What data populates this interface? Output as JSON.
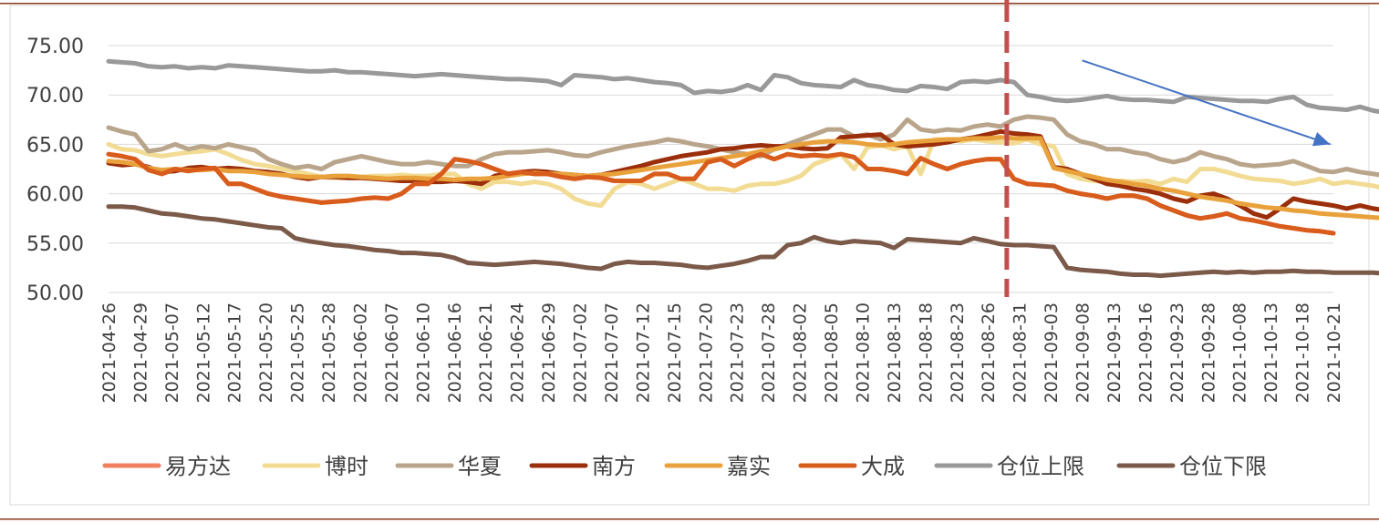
{
  "chart_data": {
    "type": "line",
    "title": "",
    "xlabel": "",
    "ylabel": "",
    "ylim": [
      50,
      75
    ],
    "yticks": [
      "50.00",
      "55.00",
      "60.00",
      "65.00",
      "70.00",
      "75.00"
    ],
    "grid": "horizontal",
    "legend_position": "bottom",
    "x_tick_labels": [
      "2021-04-26",
      "2021-04-29",
      "2021-05-07",
      "2021-05-12",
      "2021-05-17",
      "2021-05-20",
      "2021-05-25",
      "2021-05-28",
      "2021-06-02",
      "2021-06-07",
      "2021-06-10",
      "2021-06-16",
      "2021-06-21",
      "2021-06-24",
      "2021-06-29",
      "2021-07-02",
      "2021-07-07",
      "2021-07-12",
      "2021-07-15",
      "2021-07-20",
      "2021-07-23",
      "2021-07-28",
      "2021-08-02",
      "2021-08-05",
      "2021-08-10",
      "2021-08-13",
      "2021-08-18",
      "2021-08-23",
      "2021-08-26",
      "2021-08-31",
      "2021-09-03",
      "2021-09-08",
      "2021-09-13",
      "2021-09-16",
      "2021-09-23",
      "2021-09-28",
      "2021-10-08",
      "2021-10-13",
      "2021-10-18",
      "2021-10-21"
    ],
    "marker_line": {
      "x_index": 28.6,
      "color": "#c0504d",
      "style": "dashed"
    },
    "arrow": {
      "from": [
        31.0,
        73.5
      ],
      "to": [
        38.9,
        65.0
      ],
      "color": "#4472c4"
    },
    "series": [
      {
        "name": "易方达",
        "color": "#f08060",
        "values": [
          64,
          63.8,
          63.5,
          62.4,
          62,
          62.5,
          62.3,
          62.5,
          62.6,
          61,
          61,
          60.5,
          60,
          59.7,
          59.5,
          59.3,
          59.1,
          59.2,
          59.3,
          59.5,
          59.6,
          59.5,
          60,
          61,
          61,
          62,
          63.5,
          63.3,
          63,
          62.5,
          62,
          62.2,
          62,
          62,
          61.7,
          61.5,
          61.7,
          61.6,
          61.3,
          61.3,
          61.3,
          62,
          62,
          61.5,
          61.5,
          63.2,
          63.5,
          62.8,
          63.5,
          64,
          63.5,
          64,
          63.8,
          63.9,
          63.8,
          64,
          63.7,
          62.5,
          62.5,
          62.3,
          62,
          63.6,
          63,
          62.5,
          63,
          63.3,
          63.5,
          63.5,
          61.5,
          61,
          60.9,
          60.8,
          60.3,
          60,
          59.8,
          59.5,
          59.8,
          59.8,
          59.5,
          58.8,
          58.3,
          57.8,
          57.5,
          57.7,
          58,
          57.5,
          57.3,
          57,
          56.7,
          56.5,
          56.3,
          56.2,
          56
        ]
      },
      {
        "name": "博时",
        "color": "#f2dc94",
        "values": [
          65,
          64.5,
          64.4,
          64,
          63.8,
          64,
          64.2,
          64.3,
          64.5,
          64,
          63.4,
          63,
          62.8,
          62.5,
          62.3,
          62,
          61.7,
          61.6,
          61.6,
          61.7,
          61.8,
          61.8,
          61.9,
          61.8,
          61.8,
          62,
          62,
          61,
          60.5,
          61.2,
          61.2,
          61,
          61.2,
          61,
          60.5,
          59.5,
          59,
          58.8,
          60.5,
          61.2,
          61,
          60.5,
          61,
          61.5,
          61,
          60.5,
          60.5,
          60.3,
          60.8,
          61,
          61,
          61.3,
          61.8,
          63,
          63.5,
          64,
          62.5,
          64.7,
          64.9,
          64.5,
          64.8,
          62,
          65.5,
          65.5,
          65.3,
          65.5,
          65.3,
          65.2,
          65.1,
          65.5,
          65,
          64.8,
          62,
          61.5,
          61.3,
          61.2,
          61.3,
          61.2,
          61.3,
          61,
          61.5,
          61.2,
          62.5,
          62.5,
          62.2,
          61.8,
          61.5,
          61.4,
          61.3,
          61,
          61.2,
          61.5,
          61,
          61.2,
          61,
          60.8,
          60.5,
          60.5
        ]
      },
      {
        "name": "华夏",
        "color": "#b9a58b",
        "values": [
          66.7,
          66.3,
          66,
          64.3,
          64.5,
          65,
          64.5,
          64.8,
          64.6,
          65,
          64.7,
          64.4,
          63.5,
          63,
          62.6,
          62.8,
          62.5,
          63.2,
          63.5,
          63.8,
          63.5,
          63.2,
          63,
          63,
          63.2,
          63,
          62.8,
          62.8,
          63.5,
          64,
          64.2,
          64.2,
          64.3,
          64.4,
          64.2,
          63.9,
          63.8,
          64.2,
          64.5,
          64.8,
          65,
          65.2,
          65.5,
          65.3,
          65,
          64.8,
          64.5,
          64.2,
          64,
          63.8,
          64.5,
          65,
          65.5,
          66,
          66.5,
          66.5,
          65.8,
          66,
          65.5,
          66,
          67.5,
          66.5,
          66.3,
          66.5,
          66.4,
          66.8,
          67,
          66.8,
          67.5,
          67.8,
          67.7,
          67.5,
          66,
          65.3,
          65,
          64.5,
          64.5,
          64.2,
          64,
          63.5,
          63.2,
          63.5,
          64.2,
          63.8,
          63.5,
          63,
          62.8,
          62.9,
          63,
          63.3,
          62.8,
          62.3,
          62.2,
          62.5,
          62.2,
          62,
          61.8,
          61.5,
          61.3,
          61.3
        ]
      },
      {
        "name": "南方",
        "color": "#9c2f0b",
        "values": [
          63.1,
          62.9,
          63,
          62.7,
          62.2,
          62.3,
          62.6,
          62.7,
          62.5,
          62.6,
          62.5,
          62.3,
          62.2,
          62,
          61.7,
          61.5,
          61.7,
          61.7,
          61.6,
          61.6,
          61.5,
          61.4,
          61.3,
          61.3,
          61.2,
          61.2,
          61.3,
          61.2,
          61,
          61.8,
          62,
          62.2,
          62.3,
          62.2,
          62,
          61.9,
          61.8,
          61.9,
          62.2,
          62.5,
          62.8,
          63.2,
          63.5,
          63.8,
          64,
          64.2,
          64.5,
          64.6,
          64.8,
          64.9,
          64.8,
          64.8,
          64.6,
          64.5,
          64.6,
          65.7,
          65.8,
          65.9,
          66,
          65,
          64.8,
          64.9,
          65,
          65.2,
          65.5,
          65.7,
          66,
          66.3,
          66.1,
          66,
          65.8,
          62.7,
          62.5,
          62,
          61.5,
          61,
          60.8,
          60.5,
          60.3,
          60,
          59.5,
          59.2,
          59.8,
          60,
          59.5,
          58.8,
          58,
          57.6,
          58.5,
          59.5,
          59.2,
          59,
          58.8,
          58.5,
          58.8,
          58.5,
          58.3,
          58,
          57.8
        ]
      },
      {
        "name": "嘉实",
        "color": "#e9a23b",
        "values": [
          63.3,
          63.2,
          63,
          62.6,
          62.4,
          62.5,
          62.4,
          62.4,
          62.5,
          62.3,
          62.3,
          62.2,
          62,
          61.9,
          61.8,
          61.7,
          61.7,
          61.8,
          61.8,
          61.7,
          61.6,
          61.5,
          61.6,
          61.6,
          61.5,
          61.5,
          61.4,
          61.5,
          61.5,
          61.6,
          61.8,
          62,
          62.1,
          62,
          62,
          61.9,
          61.8,
          61.9,
          62,
          62.2,
          62.4,
          62.6,
          62.8,
          63,
          63.2,
          63.4,
          63.6,
          63.8,
          64,
          64.3,
          64.5,
          64.8,
          65,
          65.2,
          65.3,
          65.3,
          65.2,
          65,
          64.9,
          65,
          65.2,
          65.3,
          65.4,
          65.5,
          65.5,
          65.6,
          65.6,
          65.7,
          65.6,
          65.6,
          65.6,
          62.6,
          62.3,
          62,
          61.7,
          61.4,
          61.2,
          61,
          60.8,
          60.5,
          60.3,
          60,
          59.7,
          59.5,
          59.3,
          59,
          58.8,
          58.6,
          58.5,
          58.3,
          58.2,
          58,
          57.9,
          57.8,
          57.7,
          57.6,
          57.5,
          57.4,
          57.3
        ]
      },
      {
        "name": "大成",
        "color": "#d85c1c",
        "values": [
          64,
          63.8,
          63.5,
          62.4,
          62,
          62.5,
          62.3,
          62.5,
          62.6,
          61,
          61,
          60.5,
          60,
          59.7,
          59.5,
          59.3,
          59.1,
          59.2,
          59.3,
          59.5,
          59.6,
          59.5,
          60,
          61,
          61,
          62,
          63.5,
          63.3,
          63,
          62.5,
          62,
          62.2,
          62,
          62,
          61.7,
          61.5,
          61.7,
          61.6,
          61.3,
          61.3,
          61.3,
          62,
          62,
          61.5,
          61.5,
          63.2,
          63.5,
          62.8,
          63.5,
          64,
          63.5,
          64,
          63.8,
          63.9,
          63.8,
          64,
          63.7,
          62.5,
          62.5,
          62.3,
          62,
          63.6,
          63,
          62.5,
          63,
          63.3,
          63.5,
          63.5,
          61.5,
          61,
          60.9,
          60.8,
          60.3,
          60,
          59.8,
          59.5,
          59.8,
          59.8,
          59.5,
          58.8,
          58.3,
          57.8,
          57.5,
          57.7,
          58,
          57.5,
          57.3,
          57,
          56.7,
          56.5,
          56.3,
          56.2,
          56
        ]
      },
      {
        "name": "仓位上限",
        "color": "#999999",
        "values": [
          73.4,
          73.3,
          73.2,
          72.9,
          72.8,
          72.9,
          72.7,
          72.8,
          72.7,
          73,
          72.9,
          72.8,
          72.7,
          72.6,
          72.5,
          72.4,
          72.4,
          72.5,
          72.3,
          72.3,
          72.2,
          72.1,
          72,
          71.9,
          72,
          72.1,
          72,
          71.9,
          71.8,
          71.7,
          71.6,
          71.6,
          71.5,
          71.4,
          71,
          72,
          71.9,
          71.8,
          71.6,
          71.7,
          71.5,
          71.3,
          71.2,
          71,
          70.2,
          70.4,
          70.3,
          70.5,
          71,
          70.5,
          72,
          71.8,
          71.2,
          71,
          70.9,
          70.8,
          71.5,
          71,
          70.8,
          70.5,
          70.4,
          70.9,
          70.8,
          70.6,
          71.3,
          71.4,
          71.3,
          71.5,
          71.3,
          70,
          69.8,
          69.5,
          69.4,
          69.5,
          69.7,
          69.9,
          69.6,
          69.5,
          69.5,
          69.4,
          69.3,
          69.8,
          69.7,
          69.6,
          69.5,
          69.4,
          69.4,
          69.3,
          69.6,
          69.8,
          69,
          68.7,
          68.6,
          68.5,
          68.8,
          68.4,
          68.2,
          68,
          67.8,
          67.7
        ]
      },
      {
        "name": "仓位下限",
        "color": "#7b5a4a",
        "values": [
          58.7,
          58.7,
          58.6,
          58.3,
          58,
          57.9,
          57.7,
          57.5,
          57.4,
          57.2,
          57,
          56.8,
          56.6,
          56.5,
          55.5,
          55.2,
          55,
          54.8,
          54.7,
          54.5,
          54.3,
          54.2,
          54,
          54,
          53.9,
          53.8,
          53.5,
          53,
          52.9,
          52.8,
          52.9,
          53,
          53.1,
          53,
          52.9,
          52.7,
          52.5,
          52.4,
          52.9,
          53.1,
          53,
          53,
          52.9,
          52.8,
          52.6,
          52.5,
          52.7,
          52.9,
          53.2,
          53.6,
          53.6,
          54.8,
          55,
          55.6,
          55.2,
          55,
          55.2,
          55.1,
          55,
          54.5,
          55.4,
          55.3,
          55.2,
          55.1,
          55,
          55.5,
          55.2,
          54.9,
          54.8,
          54.8,
          54.7,
          54.6,
          52.5,
          52.3,
          52.2,
          52.1,
          51.9,
          51.8,
          51.8,
          51.7,
          51.8,
          51.9,
          52,
          52.1,
          52,
          52.1,
          52,
          52.1,
          52.1,
          52.2,
          52.1,
          52.1,
          52,
          52,
          52,
          52,
          51.9,
          51.8,
          51.7
        ]
      }
    ]
  }
}
